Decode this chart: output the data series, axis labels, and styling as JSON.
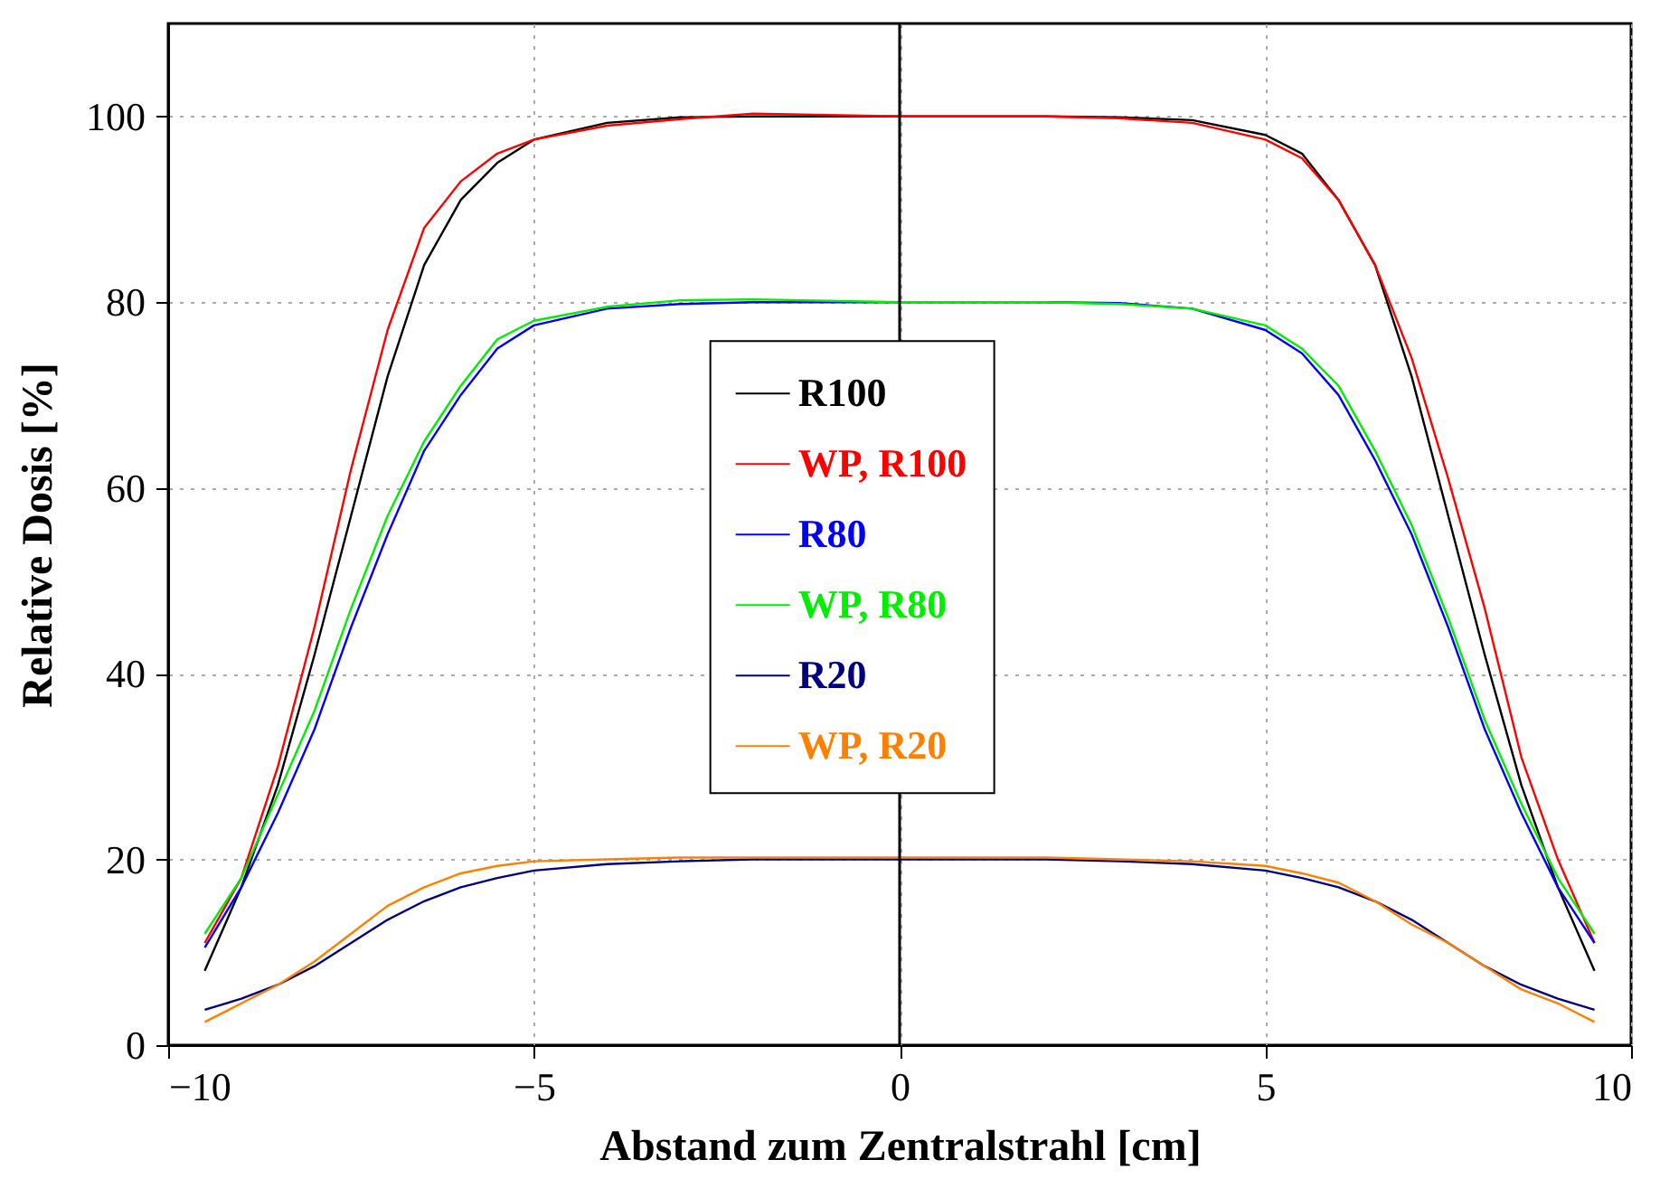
{
  "chart_data": {
    "type": "line",
    "xlabel": "Abstand zum Zentralstrahl [cm]",
    "ylabel": "Relative Dosis [%]",
    "x": [
      -9.5,
      -9,
      -8.5,
      -8,
      -7.5,
      -7,
      -6.5,
      -6,
      -5.5,
      -5,
      -4,
      -3,
      -2,
      0,
      2,
      3,
      4,
      5,
      5.5,
      6,
      6.5,
      7,
      7.5,
      8,
      8.5,
      9,
      9.5
    ],
    "series": [
      {
        "name": "R100",
        "color": "#000000",
        "values": [
          8,
          17,
          28,
          42,
          57,
          72,
          84,
          91,
          95,
          97.5,
          99.3,
          99.9,
          100,
          100,
          100,
          99.9,
          99.6,
          98,
          96,
          91,
          84,
          72,
          57,
          42,
          28,
          17,
          8
        ]
      },
      {
        "name": "WP, R100",
        "color": "#ff0000",
        "values": [
          11,
          18,
          30,
          45,
          62,
          77,
          88,
          93,
          96,
          97.5,
          99,
          99.7,
          100.3,
          100,
          100,
          99.8,
          99.3,
          97.5,
          95.5,
          91,
          84,
          74,
          61,
          47,
          31,
          20,
          11
        ]
      },
      {
        "name": "R80",
        "color": "#0000ff",
        "values": [
          10.5,
          17,
          25,
          34,
          45,
          55,
          64,
          70,
          75,
          77.5,
          79.3,
          79.8,
          80,
          80,
          80,
          79.9,
          79.3,
          77,
          74.5,
          70,
          63,
          55,
          45,
          34,
          25,
          17,
          11
        ]
      },
      {
        "name": "WP, R80",
        "color": "#00ee00",
        "values": [
          12,
          18,
          27,
          36,
          47,
          57,
          65,
          71,
          76,
          78,
          79.5,
          80.2,
          80.3,
          80,
          80,
          79.8,
          79.3,
          77.5,
          75,
          71,
          64,
          56,
          46,
          35,
          26,
          18,
          12
        ]
      },
      {
        "name": "R20",
        "color": "#000080",
        "values": [
          3.8,
          5,
          6.5,
          8.5,
          11,
          13.5,
          15.5,
          17,
          18,
          18.8,
          19.5,
          19.8,
          20,
          20,
          20,
          19.8,
          19.5,
          18.8,
          18,
          17,
          15.5,
          13.5,
          11,
          8.5,
          6.5,
          5,
          3.8
        ]
      },
      {
        "name": "WP, R20",
        "color": "#ff8000",
        "values": [
          2.5,
          4.5,
          6.5,
          9,
          12,
          15,
          17,
          18.5,
          19.3,
          19.8,
          20,
          20.2,
          20.2,
          20.2,
          20.2,
          20,
          19.8,
          19.3,
          18.5,
          17.5,
          15.5,
          13,
          11,
          8.5,
          6,
          4.5,
          2.5
        ]
      }
    ],
    "xlim": [
      -10,
      10
    ],
    "xticks": [
      -10,
      -5,
      0,
      5,
      10
    ],
    "ylim": [
      0,
      110
    ],
    "yticks": [
      0,
      20,
      40,
      60,
      80,
      100
    ],
    "ref_lines": [
      {
        "axis": "x",
        "value": 0,
        "color": "#000000"
      }
    ],
    "grid": true,
    "legend": "center",
    "marker": "none",
    "line_style": "solid"
  }
}
